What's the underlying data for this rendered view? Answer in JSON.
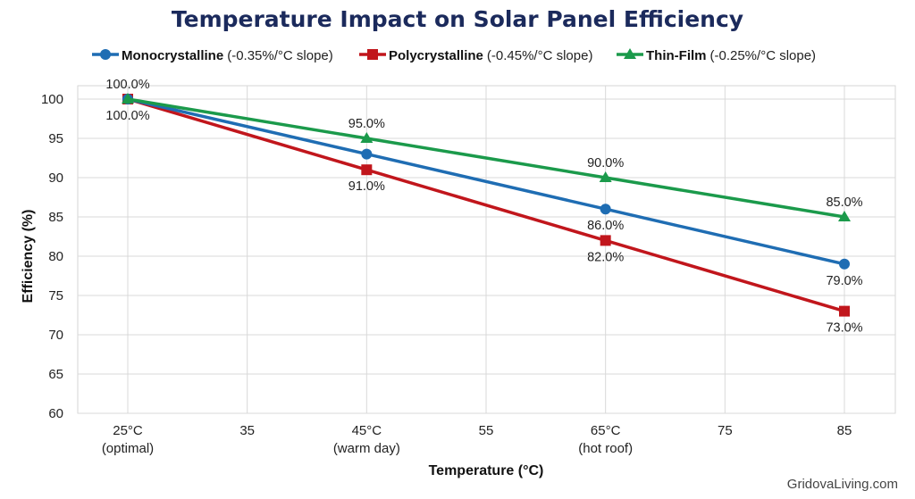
{
  "chart_data": {
    "type": "line",
    "title": "Temperature Impact on Solar Panel Efficiency",
    "xlabel": "Temperature (°C)",
    "ylabel": "Efficiency (%)",
    "xlim": [
      21,
      89
    ],
    "ylim": [
      60,
      100
    ],
    "grid": true,
    "legend_position": "top",
    "x_ticks": [
      {
        "value": 25,
        "label": "25°C",
        "sub": "(optimal)"
      },
      {
        "value": 35,
        "label": "35",
        "sub": ""
      },
      {
        "value": 45,
        "label": "45°C",
        "sub": "(warm day)"
      },
      {
        "value": 55,
        "label": "55",
        "sub": ""
      },
      {
        "value": 65,
        "label": "65°C",
        "sub": "(hot roof)"
      },
      {
        "value": 75,
        "label": "75",
        "sub": ""
      },
      {
        "value": 85,
        "label": "85",
        "sub": ""
      }
    ],
    "y_ticks": [
      60,
      65,
      70,
      75,
      80,
      85,
      90,
      95,
      100
    ],
    "x": [
      25,
      45,
      65,
      85
    ],
    "series": [
      {
        "name": "Monocrystalline",
        "note": "(-0.35%/°C slope)",
        "color": "#1f6db3",
        "marker": "circle",
        "values": [
          100,
          93,
          86,
          79
        ]
      },
      {
        "name": "Polycrystalline",
        "note": "(-0.45%/°C slope)",
        "color": "#c1161c",
        "marker": "square",
        "values": [
          100,
          91,
          82,
          73
        ]
      },
      {
        "name": "Thin-Film",
        "note": "(-0.25%/°C slope)",
        "color": "#1b9a4b",
        "marker": "triangle",
        "values": [
          100,
          95,
          90,
          85
        ]
      }
    ],
    "annotations": [
      {
        "x": 25,
        "y": 100,
        "text": "100.0%",
        "position": "above"
      },
      {
        "x": 25,
        "y": 100,
        "text": "100.0%",
        "position": "below"
      },
      {
        "x": 45,
        "y": 95,
        "text": "95.0%",
        "position": "above"
      },
      {
        "x": 45,
        "y": 91,
        "text": "91.0%",
        "position": "below"
      },
      {
        "x": 65,
        "y": 90,
        "text": "90.0%",
        "position": "above"
      },
      {
        "x": 65,
        "y": 86,
        "text": "86.0%",
        "position": "below"
      },
      {
        "x": 65,
        "y": 82,
        "text": "82.0%",
        "position": "below"
      },
      {
        "x": 85,
        "y": 85,
        "text": "85.0%",
        "position": "above"
      },
      {
        "x": 85,
        "y": 79,
        "text": "79.0%",
        "position": "below"
      },
      {
        "x": 85,
        "y": 73,
        "text": "73.0%",
        "position": "below"
      }
    ]
  },
  "watermark": "GridovaLiving.com"
}
